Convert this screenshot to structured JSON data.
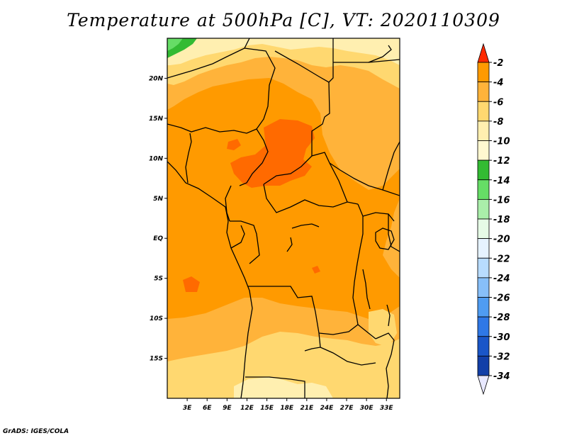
{
  "title": "Temperature at 500hPa [C], VT: 2020110309",
  "credit": "GrADS: IGES/COLA",
  "map": {
    "lon_range": [
      0,
      35
    ],
    "lat_range": [
      -20,
      25
    ],
    "lon_ticks": [
      {
        "value": 3,
        "label": "3E"
      },
      {
        "value": 6,
        "label": "6E"
      },
      {
        "value": 9,
        "label": "9E"
      },
      {
        "value": 12,
        "label": "12E"
      },
      {
        "value": 15,
        "label": "15E"
      },
      {
        "value": 18,
        "label": "18E"
      },
      {
        "value": 21,
        "label": "21E"
      },
      {
        "value": 24,
        "label": "24E"
      },
      {
        "value": 27,
        "label": "27E"
      },
      {
        "value": 30,
        "label": "30E"
      },
      {
        "value": 33,
        "label": "33E"
      }
    ],
    "lat_ticks": [
      {
        "value": 20,
        "label": "20N"
      },
      {
        "value": 15,
        "label": "15N"
      },
      {
        "value": 10,
        "label": "10N"
      },
      {
        "value": 5,
        "label": "5N"
      },
      {
        "value": 0,
        "label": "EQ"
      },
      {
        "value": -5,
        "label": "5S"
      },
      {
        "value": -10,
        "label": "10S"
      },
      {
        "value": -15,
        "label": "15S"
      }
    ]
  },
  "colorbar": {
    "levels": [
      "-2",
      "-4",
      "-6",
      "-8",
      "-10",
      "-12",
      "-14",
      "-16",
      "-18",
      "-20",
      "-22",
      "-24",
      "-26",
      "-28",
      "-30",
      "-32",
      "-34"
    ],
    "colors": [
      "#ff6a00",
      "#ff9a00",
      "#ffb33a",
      "#ffd870",
      "#ffefb0",
      "#fff8d0",
      "#33bb33",
      "#66dd66",
      "#aaeeaa",
      "#e6fbe6",
      "#e6f3ff",
      "#b8dcff",
      "#87bff9",
      "#4f9cf2",
      "#2f78e6",
      "#1a56c8",
      "#123fa8",
      "#0c1c6e"
    ],
    "top_arrow_color": "#ff2a00",
    "bottom_arrow_color": "#e8e8ff"
  },
  "field_colors": {
    "-4_-2": "#ff6a00",
    "-6_-4": "#ff9a00",
    "-8_-6": "#ffb33a",
    "-10_-8": "#ffd870",
    "-12_-10": "#ffefb0",
    "-14_-12": "#33bb33",
    "-16_-14": "#66dd66"
  }
}
